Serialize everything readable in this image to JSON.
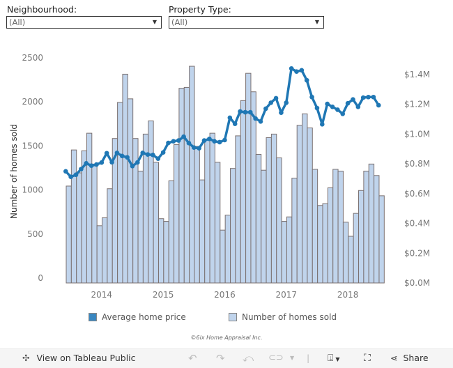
{
  "filters": {
    "neighbourhood": {
      "label": "Neighbourhood:",
      "value": "(All)"
    },
    "property_type": {
      "label": "Property Type:",
      "value": "(All)"
    }
  },
  "chart_data": {
    "type": "bar+line (dual axis)",
    "ylabel": "Number of homes sold",
    "ylabel_right": "",
    "ylim": [
      0,
      2500
    ],
    "ylim_right": [
      0,
      1400000
    ],
    "y_ticks": [
      "0",
      "500",
      "1000",
      "1500",
      "2000",
      "2500"
    ],
    "y_right_ticks": [
      "$0.0M",
      "$0.2M",
      "$0.4M",
      "$0.6M",
      "$0.8M",
      "$1.0M",
      "$1.2M",
      "$1.4M"
    ],
    "x_ticks": [
      "2014",
      "2015",
      "2016",
      "2017",
      "2018"
    ],
    "grid": false,
    "legend_position": "bottom",
    "x": [
      "2013-06",
      "2013-07",
      "2013-08",
      "2013-09",
      "2013-10",
      "2013-11",
      "2013-12",
      "2014-01",
      "2014-02",
      "2014-03",
      "2014-04",
      "2014-05",
      "2014-06",
      "2014-07",
      "2014-08",
      "2014-09",
      "2014-10",
      "2014-11",
      "2014-12",
      "2015-01",
      "2015-02",
      "2015-03",
      "2015-04",
      "2015-05",
      "2015-06",
      "2015-07",
      "2015-08",
      "2015-09",
      "2015-10",
      "2015-11",
      "2015-12",
      "2016-01",
      "2016-02",
      "2016-03",
      "2016-04",
      "2016-05",
      "2016-06",
      "2016-07",
      "2016-08",
      "2016-09",
      "2016-10",
      "2016-11",
      "2016-12",
      "2017-01",
      "2017-02",
      "2017-03",
      "2017-04",
      "2017-05",
      "2017-06",
      "2017-07",
      "2017-08",
      "2017-09",
      "2017-10",
      "2017-11",
      "2017-12",
      "2018-01",
      "2018-02",
      "2018-03",
      "2018-04",
      "2018-05",
      "2018-06",
      "2018-07"
    ],
    "series": [
      {
        "name": "Number of homes sold",
        "type": "bar",
        "axis": "left",
        "color": "#c0d4ec",
        "values": [
          1100,
          1510,
          1250,
          1500,
          1700,
          1350,
          650,
          740,
          1070,
          1640,
          2050,
          2370,
          2090,
          1640,
          1270,
          1690,
          1840,
          1370,
          730,
          700,
          1160,
          1570,
          2210,
          2220,
          2460,
          1550,
          1170,
          1630,
          1700,
          1370,
          600,
          770,
          1300,
          1670,
          2070,
          2380,
          2170,
          1460,
          1280,
          1650,
          1690,
          1420,
          700,
          750,
          1190,
          1790,
          1920,
          1760,
          1290,
          880,
          900,
          1080,
          1290,
          1270,
          690,
          530,
          790,
          1050,
          1270,
          1350,
          1220,
          990
        ]
      },
      {
        "name": "Average home price",
        "type": "line",
        "axis": "right",
        "color": "#1f77b4",
        "values": [
          750000,
          713000,
          727000,
          765000,
          804000,
          788000,
          796000,
          809000,
          872000,
          811000,
          874000,
          853000,
          844000,
          785000,
          810000,
          874000,
          863000,
          860000,
          835000,
          877000,
          941000,
          952000,
          957000,
          983000,
          940000,
          910000,
          905000,
          957000,
          968000,
          952000,
          946000,
          960000,
          1110000,
          1069000,
          1152000,
          1147000,
          1147000,
          1105000,
          1085000,
          1171000,
          1211000,
          1241000,
          1144000,
          1211000,
          1441000,
          1420000,
          1429000,
          1362000,
          1249000,
          1175000,
          1066000,
          1203000,
          1183000,
          1164000,
          1136000,
          1207000,
          1233000,
          1183000,
          1245000,
          1249000,
          1249000,
          1194000
        ]
      }
    ]
  },
  "legend": {
    "items": [
      {
        "label": "Average home price",
        "color": "#3a87c0"
      },
      {
        "label": "Number of homes sold",
        "color": "#c0d4ec"
      }
    ]
  },
  "footer": {
    "copyright": "©6ix Home Appraisal Inc."
  },
  "toolbar": {
    "view_on_tableau": "View on Tableau Public",
    "share": "Share"
  }
}
